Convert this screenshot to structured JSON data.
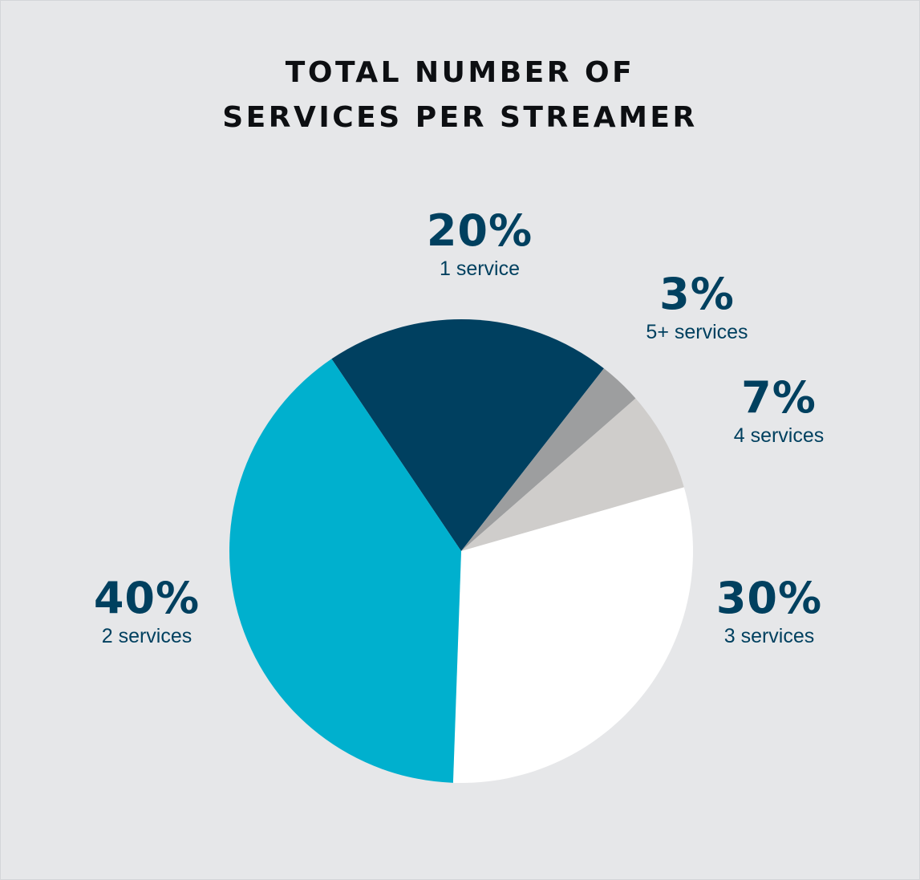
{
  "title_lines": [
    "TOTAL NUMBER OF",
    "SERVICES PER STREAMER"
  ],
  "chart_data": {
    "type": "pie",
    "title": "TOTAL NUMBER OF SERVICES PER STREAMER",
    "slices": [
      {
        "label": "1 service",
        "value": 20,
        "value_label": "20%",
        "color": "#004060"
      },
      {
        "label": "5+ services",
        "value": 3,
        "value_label": "3%",
        "color": "#9d9e9f"
      },
      {
        "label": "4 services",
        "value": 7,
        "value_label": "7%",
        "color": "#cfcdcb"
      },
      {
        "label": "3 services",
        "value": 30,
        "value_label": "30%",
        "color": "#ffffff"
      },
      {
        "label": "2 services",
        "value": 40,
        "value_label": "40%",
        "color": "#00b0ce"
      }
    ],
    "start_angle_deg": -34,
    "direction": "clockwise",
    "label_color": "#00405f"
  }
}
